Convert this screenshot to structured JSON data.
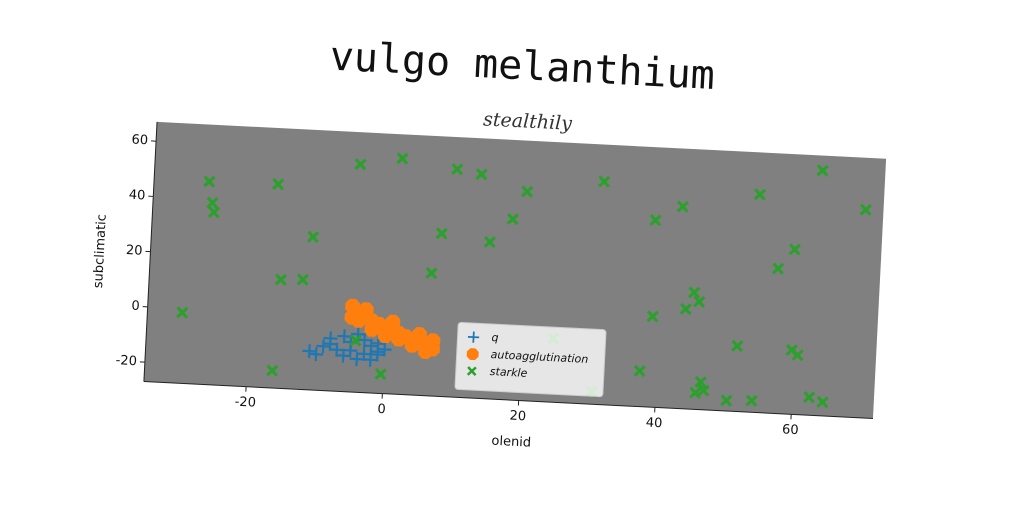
{
  "chart_data": {
    "type": "scatter",
    "title": "vulgo melanthium",
    "subtitle": "stealthily",
    "x_label": "olenid",
    "y_label": "subclimatic",
    "xlim": [
      -35,
      72
    ],
    "ylim": [
      -27,
      67
    ],
    "xticks": [
      -20,
      0,
      20,
      40,
      60
    ],
    "yticks": [
      -20,
      0,
      20,
      40,
      60
    ],
    "legend_position": "lower center",
    "background": "#808080",
    "series": [
      {
        "name": "q",
        "color": "#1f77b4",
        "marker": "plus",
        "x": [
          -8,
          -6,
          -5,
          -4,
          -3,
          -2,
          -1,
          0,
          -9,
          -7,
          -5,
          -3,
          -1,
          -10,
          -6,
          -4,
          -2,
          -11,
          -8,
          -1
        ],
        "y": [
          -8,
          -7,
          -9,
          -6,
          -8,
          -10,
          -9,
          -11,
          -11,
          -12,
          -12,
          -13,
          -13,
          -14,
          -14,
          -15,
          -15,
          -13,
          -10,
          -12
        ]
      },
      {
        "name": "autoagglutination",
        "color": "#ff7f0e",
        "marker": "octagon",
        "x": [
          -5,
          -5,
          -4,
          -3,
          -2,
          -1,
          0,
          1,
          2,
          3,
          4,
          5,
          6,
          7,
          7,
          -4,
          -2,
          0,
          2,
          4,
          6,
          -3,
          1,
          5
        ],
        "y": [
          4,
          0,
          2,
          1,
          -1,
          -2,
          -3,
          -4,
          -5,
          -6,
          -7,
          -8,
          -9,
          -10,
          -7,
          -1,
          -4,
          -6,
          -7,
          -9,
          -11,
          3,
          -1,
          -5
        ]
      },
      {
        "name": "starkle",
        "color": "#2ca02c",
        "marker": "x",
        "x": [
          -26.9,
          -26.3,
          -26,
          -29.9,
          -16.8,
          -15.7,
          -12.5,
          -11.3,
          -16.3,
          -4.9,
          1.2,
          -4.3,
          -0.4,
          7.5,
          6.3,
          9.3,
          12.9,
          14.6,
          17.8,
          19.7,
          24.6,
          30.9,
          30.6,
          38.7,
          39,
          37.5,
          42.6,
          44.9,
          43.8,
          45.7,
          46.5,
          45.8,
          47,
          50.4,
          51.6,
          53.8,
          54.1,
          57,
          59.3,
          59.6,
          60.5,
          62.8,
          62.5,
          64.5,
          69.4
        ],
        "y": [
          46.4,
          38.8,
          35.4,
          -1.4,
          46.7,
          12.3,
          12.7,
          28.3,
          -20.7,
          55.4,
          58.3,
          -8.3,
          -20,
          31.9,
          17.4,
          55.4,
          54,
          29.7,
          38.4,
          48.6,
          -4,
          53.6,
          -22.5,
          40.6,
          5.8,
          -14.1,
          46,
          15.2,
          9.1,
          12,
          -17,
          -21,
          -20,
          -23.2,
          -3.3,
          51.8,
          -22.8,
          25.4,
          32.6,
          -3.8,
          -5.5,
          61.6,
          -20.5,
          -22,
          48.2
        ]
      }
    ]
  }
}
